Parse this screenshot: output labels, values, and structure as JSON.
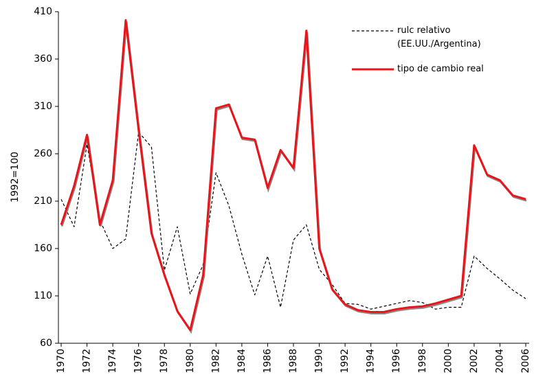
{
  "chart_data": {
    "type": "line",
    "y_label": "1992=100",
    "x": [
      1970,
      1971,
      1972,
      1973,
      1974,
      1975,
      1976,
      1977,
      1978,
      1979,
      1980,
      1981,
      1982,
      1983,
      1984,
      1985,
      1986,
      1987,
      1988,
      1989,
      1990,
      1991,
      1992,
      1993,
      1994,
      1995,
      1996,
      1997,
      1998,
      1999,
      2000,
      2001,
      2002,
      2003,
      2004,
      2005,
      2006
    ],
    "xlim": [
      1970,
      2006
    ],
    "xticks": [
      1970,
      1972,
      1974,
      1976,
      1978,
      1980,
      1982,
      1984,
      1986,
      1988,
      1990,
      1992,
      1994,
      1996,
      1998,
      2000,
      2002,
      2004,
      2006
    ],
    "ylim": [
      60,
      410
    ],
    "yticks": [
      60,
      110,
      160,
      210,
      260,
      310,
      360,
      410
    ],
    "series": [
      {
        "name": "rulc relativo (EE.UU./Argentina)",
        "color": "#000000",
        "dashed": true,
        "values": [
          212,
          183,
          270,
          190,
          160,
          170,
          283,
          267,
          137,
          183,
          112,
          143,
          240,
          205,
          154,
          111,
          152,
          98,
          169,
          185,
          138,
          122,
          102,
          101,
          96,
          99,
          102,
          105,
          103,
          96,
          98,
          98,
          152,
          139,
          128,
          116,
          107
        ]
      },
      {
        "name": "tipo de cambio real",
        "color": "#e8161b",
        "dashed": false,
        "values": [
          185,
          226,
          280,
          185,
          232,
          401,
          285,
          176,
          132,
          94,
          74,
          132,
          308,
          312,
          277,
          275,
          224,
          264,
          245,
          390,
          160,
          117,
          101,
          95,
          93,
          93,
          96,
          98,
          99,
          102,
          106,
          110,
          269,
          238,
          232,
          216,
          212
        ]
      }
    ]
  }
}
